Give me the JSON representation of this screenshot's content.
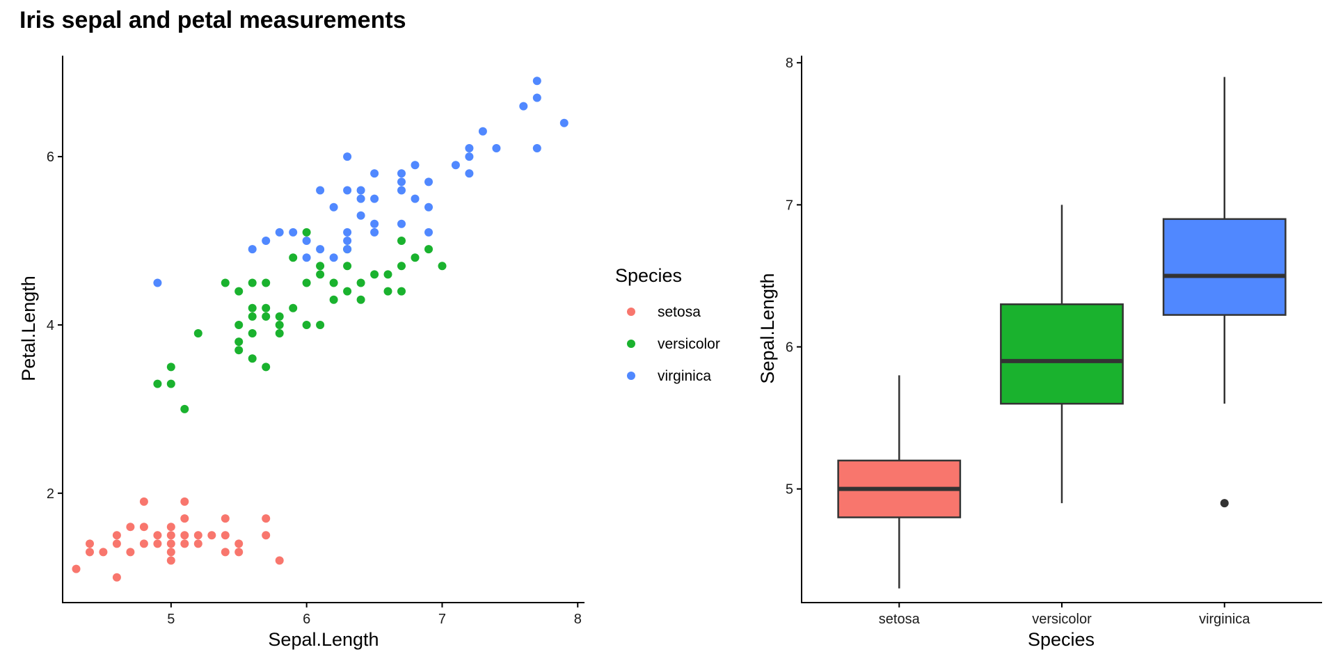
{
  "title": "Iris sepal and petal measurements",
  "colors": {
    "setosa": "#F8766D",
    "versicolor": "#1AB22E",
    "virginica": "#5088FF",
    "box_line": "#333333",
    "axis": "#000000"
  },
  "legend": {
    "title": "Species",
    "position": "right-of-scatter",
    "items": [
      "setosa",
      "versicolor",
      "virginica"
    ]
  },
  "chart_data": [
    {
      "type": "scatter",
      "xlabel": "Sepal.Length",
      "ylabel": "Petal.Length",
      "xlim": [
        4.2,
        8.05
      ],
      "ylim": [
        0.7,
        7.2
      ],
      "xticks": [
        5,
        6,
        7,
        8
      ],
      "yticks": [
        2,
        4,
        6
      ],
      "series": [
        {
          "name": "setosa",
          "points": [
            [
              4.3,
              1.1
            ],
            [
              4.4,
              1.3
            ],
            [
              4.4,
              1.4
            ],
            [
              4.5,
              1.3
            ],
            [
              4.6,
              1.0
            ],
            [
              4.6,
              1.4
            ],
            [
              4.6,
              1.5
            ],
            [
              4.7,
              1.3
            ],
            [
              4.7,
              1.6
            ],
            [
              4.8,
              1.4
            ],
            [
              4.8,
              1.6
            ],
            [
              4.8,
              1.9
            ],
            [
              4.9,
              1.4
            ],
            [
              4.9,
              1.5
            ],
            [
              5.0,
              1.2
            ],
            [
              5.0,
              1.3
            ],
            [
              5.0,
              1.4
            ],
            [
              5.0,
              1.5
            ],
            [
              5.0,
              1.6
            ],
            [
              5.1,
              1.4
            ],
            [
              5.1,
              1.5
            ],
            [
              5.1,
              1.7
            ],
            [
              5.1,
              1.9
            ],
            [
              5.2,
              1.4
            ],
            [
              5.2,
              1.5
            ],
            [
              5.3,
              1.5
            ],
            [
              5.4,
              1.3
            ],
            [
              5.4,
              1.5
            ],
            [
              5.4,
              1.7
            ],
            [
              5.5,
              1.3
            ],
            [
              5.5,
              1.4
            ],
            [
              5.7,
              1.5
            ],
            [
              5.7,
              1.7
            ],
            [
              5.8,
              1.2
            ]
          ]
        },
        {
          "name": "versicolor",
          "points": [
            [
              4.9,
              3.3
            ],
            [
              5.0,
              3.3
            ],
            [
              5.0,
              3.5
            ],
            [
              5.1,
              3.0
            ],
            [
              5.2,
              3.9
            ],
            [
              5.4,
              4.5
            ],
            [
              5.5,
              3.7
            ],
            [
              5.5,
              3.8
            ],
            [
              5.5,
              4.0
            ],
            [
              5.5,
              4.4
            ],
            [
              5.6,
              3.6
            ],
            [
              5.6,
              3.9
            ],
            [
              5.6,
              4.1
            ],
            [
              5.6,
              4.2
            ],
            [
              5.6,
              4.5
            ],
            [
              5.7,
              3.5
            ],
            [
              5.7,
              4.1
            ],
            [
              5.7,
              4.2
            ],
            [
              5.7,
              4.5
            ],
            [
              5.8,
              3.9
            ],
            [
              5.8,
              4.0
            ],
            [
              5.8,
              4.1
            ],
            [
              5.9,
              4.2
            ],
            [
              5.9,
              4.8
            ],
            [
              6.0,
              4.0
            ],
            [
              6.0,
              4.5
            ],
            [
              6.0,
              5.1
            ],
            [
              6.1,
              4.0
            ],
            [
              6.1,
              4.6
            ],
            [
              6.1,
              4.7
            ],
            [
              6.2,
              4.3
            ],
            [
              6.2,
              4.5
            ],
            [
              6.3,
              4.4
            ],
            [
              6.3,
              4.7
            ],
            [
              6.3,
              4.9
            ],
            [
              6.4,
              4.3
            ],
            [
              6.4,
              4.5
            ],
            [
              6.5,
              4.6
            ],
            [
              6.6,
              4.4
            ],
            [
              6.6,
              4.6
            ],
            [
              6.7,
              4.4
            ],
            [
              6.7,
              4.7
            ],
            [
              6.7,
              5.0
            ],
            [
              6.8,
              4.8
            ],
            [
              6.9,
              4.9
            ],
            [
              7.0,
              4.7
            ]
          ]
        },
        {
          "name": "virginica",
          "points": [
            [
              4.9,
              4.5
            ],
            [
              5.6,
              4.9
            ],
            [
              5.7,
              5.0
            ],
            [
              5.8,
              5.1
            ],
            [
              5.9,
              5.1
            ],
            [
              6.0,
              4.8
            ],
            [
              6.0,
              5.0
            ],
            [
              6.1,
              4.9
            ],
            [
              6.1,
              5.6
            ],
            [
              6.2,
              4.8
            ],
            [
              6.2,
              5.4
            ],
            [
              6.3,
              4.9
            ],
            [
              6.3,
              5.0
            ],
            [
              6.3,
              5.1
            ],
            [
              6.3,
              5.6
            ],
            [
              6.3,
              6.0
            ],
            [
              6.4,
              5.3
            ],
            [
              6.4,
              5.5
            ],
            [
              6.4,
              5.6
            ],
            [
              6.5,
              5.1
            ],
            [
              6.5,
              5.2
            ],
            [
              6.5,
              5.5
            ],
            [
              6.5,
              5.8
            ],
            [
              6.7,
              5.2
            ],
            [
              6.7,
              5.6
            ],
            [
              6.7,
              5.7
            ],
            [
              6.7,
              5.8
            ],
            [
              6.8,
              5.5
            ],
            [
              6.8,
              5.9
            ],
            [
              6.9,
              5.1
            ],
            [
              6.9,
              5.4
            ],
            [
              6.9,
              5.7
            ],
            [
              7.1,
              5.9
            ],
            [
              7.2,
              5.8
            ],
            [
              7.2,
              6.0
            ],
            [
              7.2,
              6.1
            ],
            [
              7.3,
              6.3
            ],
            [
              7.4,
              6.1
            ],
            [
              7.6,
              6.6
            ],
            [
              7.7,
              6.1
            ],
            [
              7.7,
              6.7
            ],
            [
              7.7,
              6.9
            ],
            [
              7.9,
              6.4
            ]
          ]
        }
      ]
    },
    {
      "type": "box",
      "xlabel": "Species",
      "ylabel": "Sepal.Length",
      "ylim": [
        4.2,
        8.05
      ],
      "yticks": [
        5,
        6,
        7,
        8
      ],
      "categories": [
        "setosa",
        "versicolor",
        "virginica"
      ],
      "boxes": [
        {
          "name": "setosa",
          "min": 4.3,
          "q1": 4.8,
          "median": 5.0,
          "q3": 5.2,
          "max": 5.8,
          "outliers": []
        },
        {
          "name": "versicolor",
          "min": 4.9,
          "q1": 5.6,
          "median": 5.9,
          "q3": 6.3,
          "max": 7.0,
          "outliers": []
        },
        {
          "name": "virginica",
          "min": 5.6,
          "q1": 6.225,
          "median": 6.5,
          "q3": 6.9,
          "max": 7.9,
          "outliers": [
            4.9
          ]
        }
      ]
    }
  ]
}
